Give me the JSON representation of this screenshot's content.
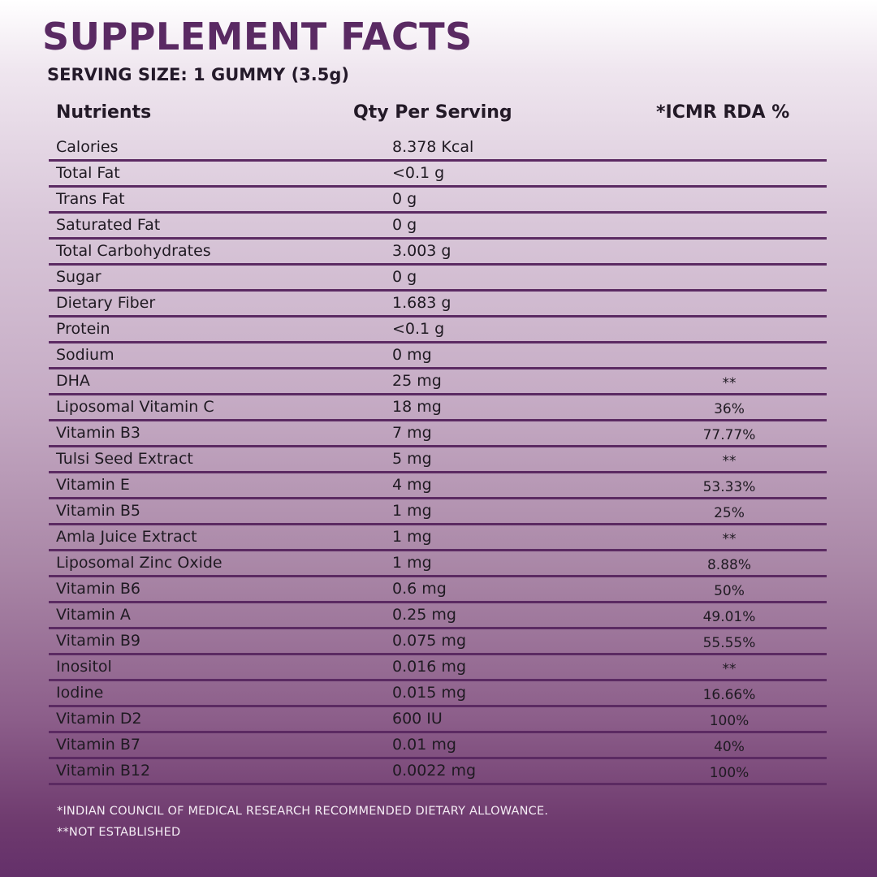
{
  "title": "SUPPLEMENT FACTS",
  "serving_size": "SERVING SIZE: 1 GUMMY (3.5g)",
  "columns": {
    "nutrient": "Nutrients",
    "qty": "Qty Per Serving",
    "rda": "*ICMR RDA %"
  },
  "rows": [
    {
      "name": "Calories",
      "qty": "8.378 Kcal",
      "rda": ""
    },
    {
      "name": "Total Fat",
      "qty": "<0.1 g",
      "rda": ""
    },
    {
      "name": "Trans Fat",
      "qty": "0 g",
      "rda": ""
    },
    {
      "name": "Saturated Fat",
      "qty": "0 g",
      "rda": ""
    },
    {
      "name": "Total Carbohydrates",
      "qty": "3.003 g",
      "rda": ""
    },
    {
      "name": "Sugar",
      "qty": "0 g",
      "rda": ""
    },
    {
      "name": "Dietary Fiber",
      "qty": "1.683 g",
      "rda": ""
    },
    {
      "name": "Protein",
      "qty": "<0.1 g",
      "rda": ""
    },
    {
      "name": "Sodium",
      "qty": "0 mg",
      "rda": ""
    },
    {
      "name": "DHA",
      "qty": "25 mg",
      "rda": "**"
    },
    {
      "name": "Liposomal Vitamin C",
      "qty": "18 mg",
      "rda": "36%"
    },
    {
      "name": "Vitamin B3",
      "qty": "7 mg",
      "rda": "77.77%"
    },
    {
      "name": "Tulsi Seed Extract",
      "qty": "5 mg",
      "rda": "**"
    },
    {
      "name": "Vitamin E",
      "qty": "4 mg",
      "rda": "53.33%"
    },
    {
      "name": "Vitamin B5",
      "qty": "1 mg",
      "rda": "25%"
    },
    {
      "name": "Amla Juice Extract",
      "qty": "1 mg",
      "rda": "**"
    },
    {
      "name": "Liposomal Zinc Oxide",
      "qty": "1 mg",
      "rda": "8.88%"
    },
    {
      "name": "Vitamin B6",
      "qty": "0.6 mg",
      "rda": "50%"
    },
    {
      "name": "Vitamin A",
      "qty": "0.25 mg",
      "rda": "49.01%"
    },
    {
      "name": "Vitamin B9",
      "qty": "0.075 mg",
      "rda": "55.55%"
    },
    {
      "name": "Inositol",
      "qty": "0.016 mg",
      "rda": "**"
    },
    {
      "name": "Iodine",
      "qty": "0.015 mg",
      "rda": "16.66%"
    },
    {
      "name": "Vitamin D2",
      "qty": "600 IU",
      "rda": "100%"
    },
    {
      "name": "Vitamin B7",
      "qty": "0.01 mg",
      "rda": "40%"
    },
    {
      "name": "Vitamin B12",
      "qty": "0.0022 mg",
      "rda": "100%"
    }
  ],
  "footnotes": {
    "icmr": "*INDIAN COUNCIL OF MEDICAL RESEARCH RECOMMENDED DIETARY ALLOWANCE.",
    "not_established": "**NOT ESTABLISHED"
  },
  "colors": {
    "title": "#5a2a63",
    "rule": "#5b2a62",
    "text": "#1f1a22",
    "footnote": "#f4ecf4"
  }
}
